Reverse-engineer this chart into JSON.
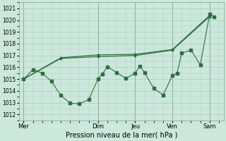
{
  "xlabel": "Pression niveau de la mer( hPa )",
  "ylim": [
    1011.5,
    1021.5
  ],
  "yticks": [
    1012,
    1013,
    1014,
    1015,
    1016,
    1017,
    1018,
    1019,
    1020,
    1021
  ],
  "xlim": [
    -1,
    43
  ],
  "vlines": [
    0,
    16,
    24,
    32,
    40
  ],
  "bg_color": "#cce8dc",
  "grid_color": "#a8ccbc",
  "line_color": "#2d6e3e",
  "series1_x": [
    0,
    8,
    16,
    24,
    32,
    40
  ],
  "series1_y": [
    1015.0,
    1016.8,
    1017.05,
    1017.1,
    1017.5,
    1020.4
  ],
  "series3_x": [
    0,
    8,
    16,
    24,
    32,
    40
  ],
  "series3_y": [
    1015.0,
    1016.75,
    1016.9,
    1017.0,
    1017.45,
    1020.3
  ],
  "series2_x": [
    0,
    2,
    4,
    6,
    8,
    10,
    12,
    14,
    16,
    17,
    18,
    20,
    22,
    24,
    25,
    26,
    28,
    30,
    32,
    33,
    34,
    36,
    38,
    40,
    41
  ],
  "series2_y": [
    1015.0,
    1015.8,
    1015.5,
    1014.8,
    1013.6,
    1012.95,
    1012.9,
    1013.25,
    1015.0,
    1015.45,
    1016.05,
    1015.55,
    1015.05,
    1015.5,
    1016.1,
    1015.55,
    1014.2,
    1013.65,
    1015.3,
    1015.5,
    1017.2,
    1017.45,
    1016.2,
    1020.5,
    1020.3
  ],
  "xtick_positions": [
    0,
    16,
    24,
    32,
    40
  ],
  "xtick_labels": [
    "Mer",
    "Dim",
    "Jeu",
    "Ven",
    "Sam"
  ],
  "xlabel_fontsize": 7,
  "ytick_fontsize": 5.5,
  "xtick_fontsize": 6
}
